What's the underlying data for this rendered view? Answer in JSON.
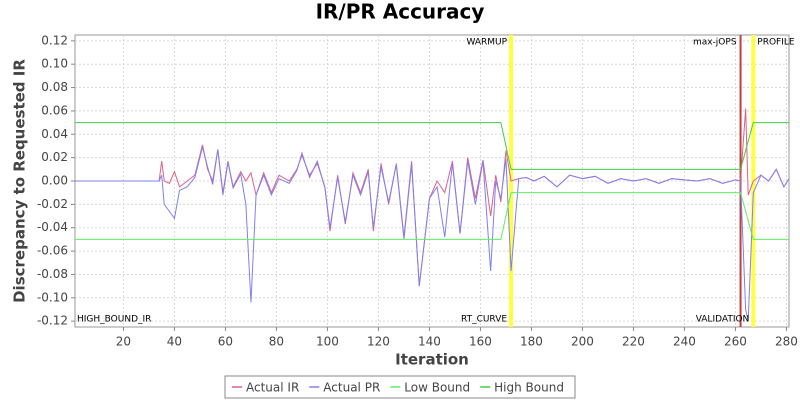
{
  "chart_data": {
    "type": "line",
    "title": "IR/PR Accuracy",
    "x_label": "Iteration",
    "y_label": "Discrepancy to Requested IR",
    "xlim": [
      1,
      281
    ],
    "ylim": [
      -0.125,
      0.125
    ],
    "xticks": [
      20,
      40,
      60,
      80,
      100,
      120,
      140,
      160,
      180,
      200,
      220,
      240,
      260,
      280
    ],
    "yticks": [
      -0.12,
      {
        "value": -0.1,
        "label": "-0.10"
      },
      -0.08,
      -0.06,
      -0.04,
      -0.02,
      {
        "value": 0,
        "label": "0.00"
      },
      0.02,
      0.04,
      0.06,
      0.08,
      {
        "value": 0.1,
        "label": "0.10"
      },
      0.12
    ],
    "grid": true,
    "legend": "bottom",
    "markers": [
      {
        "x": 172,
        "label": "WARMUP",
        "color": "#ffff40"
      },
      {
        "x": 262,
        "label": "max-jOPS",
        "color": "#c04040"
      },
      {
        "x": 267,
        "label": "PROFILE",
        "color": "#ffff40"
      }
    ],
    "bottom_labels": [
      {
        "x": 1,
        "label": "HIGH_BOUND_IR"
      },
      {
        "x": 172,
        "label": "RT_CURVE"
      },
      {
        "x": 267,
        "label": "VALIDATION"
      }
    ],
    "x": [
      1,
      34,
      35,
      36,
      38,
      40,
      42,
      45,
      48,
      51,
      53,
      55,
      57,
      59,
      61,
      63,
      66,
      68,
      70,
      72,
      75,
      78,
      81,
      85,
      88,
      90,
      93,
      96,
      99,
      101,
      104,
      107,
      110,
      113,
      116,
      118,
      121,
      124,
      127,
      130,
      133,
      136,
      140,
      143,
      146,
      149,
      152,
      155,
      158,
      161,
      164,
      166,
      168,
      170,
      172,
      175,
      178,
      181,
      185,
      190,
      195,
      200,
      205,
      210,
      215,
      220,
      225,
      230,
      235,
      240,
      245,
      250,
      255,
      260,
      262,
      264,
      265,
      267,
      270,
      273,
      276,
      279,
      281
    ],
    "series": [
      {
        "name": "Actual IR",
        "color": "#e0608a",
        "values": [
          0,
          0,
          0.017,
          0,
          -0.002,
          0.008,
          -0.005,
          0,
          0.005,
          0.031,
          0.01,
          0,
          0.027,
          -0.01,
          0.017,
          -0.005,
          0.008,
          0,
          0.007,
          -0.012,
          0.007,
          -0.01,
          0.005,
          0,
          0.01,
          0.022,
          0.005,
          0.015,
          -0.005,
          -0.043,
          0.005,
          -0.037,
          0.007,
          -0.01,
          0.01,
          -0.043,
          0.015,
          -0.02,
          0.015,
          -0.048,
          0.017,
          -0.09,
          -0.015,
          0,
          -0.01,
          0.017,
          -0.045,
          0.02,
          -0.015,
          0.018,
          -0.03,
          0.005,
          -0.018,
          0.026,
          0,
          0.002,
          0.003,
          0,
          0.004,
          -0.005,
          0.005,
          0.002,
          0.004,
          -0.002,
          0.002,
          0,
          0.002,
          -0.002,
          0.002,
          0.001,
          0,
          0.002,
          -0.002,
          0.001,
          0,
          0.062,
          -0.012,
          0,
          0.005,
          0,
          0.01,
          -0.005,
          0.002
        ]
      },
      {
        "name": "Actual PR",
        "color": "#8080f0",
        "values": [
          0,
          0,
          0.005,
          -0.02,
          -0.026,
          -0.032,
          -0.008,
          -0.005,
          0.003,
          0.029,
          0.012,
          -0.003,
          0.027,
          -0.012,
          0.016,
          -0.006,
          0.006,
          -0.02,
          -0.104,
          -0.012,
          0.005,
          -0.012,
          0.002,
          -0.002,
          0.009,
          0.024,
          0.003,
          0.017,
          -0.006,
          -0.04,
          0.003,
          -0.035,
          0.005,
          -0.012,
          0.008,
          -0.04,
          0.012,
          -0.018,
          0.014,
          -0.05,
          0.014,
          -0.09,
          -0.015,
          -0.005,
          -0.048,
          0.015,
          -0.045,
          0.017,
          -0.02,
          0.017,
          -0.077,
          0,
          -0.015,
          0.019,
          -0.077,
          0.002,
          0.003,
          0,
          0.004,
          -0.005,
          0.005,
          0.002,
          0.004,
          -0.002,
          0.002,
          0,
          0.002,
          -0.002,
          0.002,
          0.001,
          0,
          0.002,
          -0.002,
          0.001,
          0,
          -0.11,
          -0.12,
          -0.01,
          0.005,
          0,
          0.01,
          -0.005,
          0.002
        ]
      },
      {
        "name": "Low Bound",
        "color": "#60ee60",
        "values": [
          -0.05,
          -0.05,
          -0.05,
          -0.05,
          -0.05,
          -0.05,
          -0.05,
          -0.05,
          -0.05,
          -0.05,
          -0.05,
          -0.05,
          -0.05,
          -0.05,
          -0.05,
          -0.05,
          -0.05,
          -0.05,
          -0.05,
          -0.05,
          -0.05,
          -0.05,
          -0.05,
          -0.05,
          -0.05,
          -0.05,
          -0.05,
          -0.05,
          -0.05,
          -0.05,
          -0.05,
          -0.05,
          -0.05,
          -0.05,
          -0.05,
          -0.05,
          -0.05,
          -0.05,
          -0.05,
          -0.05,
          -0.05,
          -0.05,
          -0.05,
          -0.05,
          -0.05,
          -0.05,
          -0.05,
          -0.05,
          -0.05,
          -0.05,
          -0.05,
          -0.05,
          -0.05,
          -0.03,
          -0.01,
          -0.01,
          -0.01,
          -0.01,
          -0.01,
          -0.01,
          -0.01,
          -0.01,
          -0.01,
          -0.01,
          -0.01,
          -0.01,
          -0.01,
          -0.01,
          -0.01,
          -0.01,
          -0.01,
          -0.01,
          -0.01,
          -0.01,
          -0.01,
          -0.026,
          -0.034,
          -0.05,
          -0.05,
          -0.05,
          -0.05,
          -0.05,
          -0.05
        ]
      },
      {
        "name": "High Bound",
        "color": "#40d040",
        "values": [
          0.05,
          0.05,
          0.05,
          0.05,
          0.05,
          0.05,
          0.05,
          0.05,
          0.05,
          0.05,
          0.05,
          0.05,
          0.05,
          0.05,
          0.05,
          0.05,
          0.05,
          0.05,
          0.05,
          0.05,
          0.05,
          0.05,
          0.05,
          0.05,
          0.05,
          0.05,
          0.05,
          0.05,
          0.05,
          0.05,
          0.05,
          0.05,
          0.05,
          0.05,
          0.05,
          0.05,
          0.05,
          0.05,
          0.05,
          0.05,
          0.05,
          0.05,
          0.05,
          0.05,
          0.05,
          0.05,
          0.05,
          0.05,
          0.05,
          0.05,
          0.05,
          0.05,
          0.05,
          0.03,
          0.01,
          0.01,
          0.01,
          0.01,
          0.01,
          0.01,
          0.01,
          0.01,
          0.01,
          0.01,
          0.01,
          0.01,
          0.01,
          0.01,
          0.01,
          0.01,
          0.01,
          0.01,
          0.01,
          0.01,
          0.01,
          0.026,
          0.034,
          0.05,
          0.05,
          0.05,
          0.05,
          0.05,
          0.05
        ]
      }
    ]
  }
}
